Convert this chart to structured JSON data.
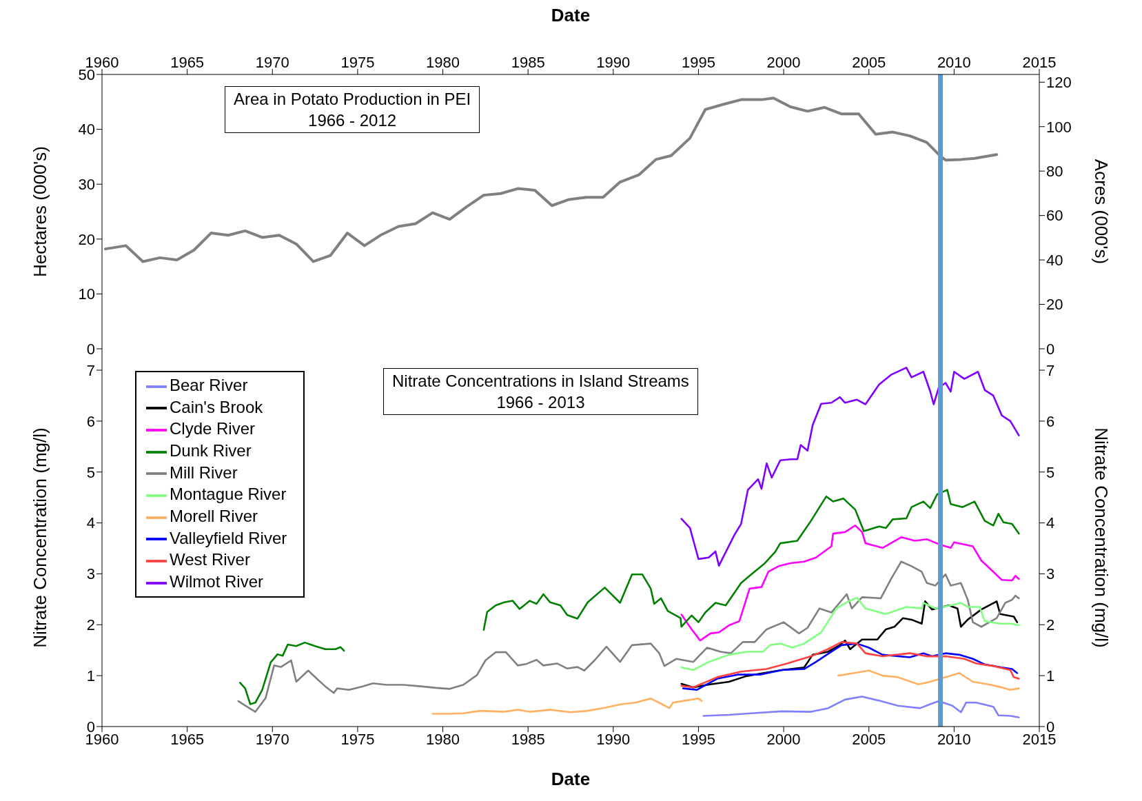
{
  "chart_data": [
    {
      "type": "line",
      "title": "Area in Potato Production in PEI",
      "subtitle": "1966 - 2012",
      "xlabel": "Date",
      "ylabel": "Hectares  (000's)",
      "y2label": "Acres (000's)",
      "xlim": [
        1960,
        2015
      ],
      "xticks": [
        1960,
        1965,
        1970,
        1975,
        1980,
        1985,
        1990,
        1995,
        2000,
        2005,
        2010,
        2015
      ],
      "ylim": [
        0,
        50
      ],
      "yticks": [
        0,
        10,
        20,
        30,
        40,
        50
      ],
      "y2lim": [
        0,
        123.5
      ],
      "y2ticks": [
        0,
        20,
        40,
        60,
        80,
        100,
        120
      ],
      "grid": false,
      "legend": false,
      "marker": "none",
      "line_style": "solid",
      "ref_lines": [
        {
          "axis": "x",
          "value": 2009.2,
          "color": "#5b9bd5"
        }
      ],
      "series": [
        {
          "color": "#808080",
          "x": [
            1960.2,
            1961.4,
            1962.4,
            1963.4,
            1964.4,
            1965.4,
            1966.4,
            1967.4,
            1968.4,
            1969.4,
            1970.4,
            1971.4,
            1972.4,
            1973.4,
            1974.4,
            1975.4,
            1976.4,
            1977.4,
            1978.4,
            1979.4,
            1980.4,
            1981.4,
            1982.4,
            1983.4,
            1984.4,
            1985.4,
            1986.4,
            1987.4,
            1988.4,
            1989.4,
            1990.4,
            1991.5,
            1992.5,
            1993.4,
            1994.5,
            1995.4,
            1996.4,
            1997.5,
            1998.7,
            1999.4,
            2000.4,
            2001.4,
            2002.4,
            2003.4,
            2004.4,
            2005.4,
            2006.4,
            2007.4,
            2008.4,
            2009.2,
            2009.5,
            2010.4,
            2011.2,
            2012.5
          ],
          "values": [
            18.2,
            18.8,
            15.9,
            16.6,
            16.2,
            18.0,
            21.1,
            20.7,
            21.5,
            20.3,
            20.7,
            19.1,
            15.9,
            17.0,
            21.1,
            18.8,
            20.8,
            22.3,
            22.8,
            24.8,
            23.6,
            25.9,
            28.0,
            28.3,
            29.2,
            28.9,
            26.1,
            27.2,
            27.6,
            27.6,
            30.4,
            31.7,
            34.5,
            35.2,
            38.4,
            43.6,
            44.5,
            45.4,
            45.4,
            45.7,
            44.1,
            43.3,
            44.0,
            42.8,
            42.8,
            39.1,
            39.5,
            38.8,
            37.6,
            35.1,
            34.4,
            34.5,
            34.7,
            35.4
          ]
        }
      ]
    },
    {
      "type": "line",
      "title": "Nitrate Concentrations in Island Streams",
      "subtitle": "1966 - 2013",
      "xlabel": "Date",
      "ylabel": "Nitrate Concentration (mg/l)",
      "y2label": "Nitrate Concentration (mg/l)",
      "xlim": [
        1960,
        2015
      ],
      "xticks": [
        1960,
        1965,
        1970,
        1975,
        1980,
        1985,
        1990,
        1995,
        2000,
        2005,
        2010,
        2015
      ],
      "ylim": [
        0,
        7.42
      ],
      "yticks": [
        0,
        1,
        2,
        3,
        4,
        5,
        6,
        7
      ],
      "y2lim": [
        0,
        7.42
      ],
      "y2ticks": [
        0,
        1,
        2,
        3,
        4,
        5,
        6,
        7
      ],
      "grid": false,
      "legend": "top left",
      "marker": "none",
      "line_style": "solid",
      "ref_lines": [
        {
          "axis": "x",
          "value": 2009.2,
          "color": "#5b9bd5"
        }
      ],
      "series": [
        {
          "name": "Bear River",
          "color": "#8080ff",
          "x": [
            1995.3,
            1996.8,
            1998.1,
            1999.9,
            2001.6,
            2002.6,
            2003.6,
            2004.6,
            2005.7,
            2006.7,
            2008.0,
            2008.6,
            2009.1,
            2009.9,
            2010.4,
            2010.7,
            2011.3,
            2012.3,
            2012.6,
            2013.3,
            2013.8
          ],
          "values": [
            0.21,
            0.23,
            0.26,
            0.3,
            0.29,
            0.36,
            0.53,
            0.59,
            0.5,
            0.41,
            0.36,
            0.44,
            0.5,
            0.41,
            0.28,
            0.47,
            0.47,
            0.39,
            0.22,
            0.21,
            0.18
          ]
        },
        {
          "name": "Cain's Brook",
          "color": "#000000",
          "x": [
            1994.0,
            1994.7,
            1995.7,
            1996.8,
            1997.8,
            1998.8,
            1999.9,
            2001.2,
            2001.7,
            2002.6,
            2003.3,
            2003.6,
            2003.9,
            2004.6,
            2005.5,
            2006.0,
            2006.5,
            2007.0,
            2007.5,
            2008.1,
            2008.3,
            2008.7,
            2009.7,
            2010.2,
            2010.4,
            2010.8,
            2011.6,
            2012.5,
            2012.7,
            2013.5,
            2013.7
          ],
          "values": [
            0.84,
            0.77,
            0.83,
            0.88,
            0.99,
            1.05,
            1.11,
            1.16,
            1.41,
            1.47,
            1.6,
            1.69,
            1.52,
            1.71,
            1.71,
            1.91,
            1.96,
            2.13,
            2.1,
            2.02,
            2.46,
            2.3,
            2.38,
            2.32,
            1.96,
            2.1,
            2.3,
            2.46,
            2.21,
            2.16,
            2.05
          ]
        },
        {
          "name": "Clyde River",
          "color": "#ff00ff",
          "x": [
            1994.0,
            1994.6,
            1995.1,
            1995.7,
            1996.2,
            1996.8,
            1997.4,
            1998.0,
            1998.7,
            1999.1,
            1999.7,
            2000.4,
            2001.2,
            2001.9,
            2002.8,
            2002.9,
            2003.6,
            2004.2,
            2004.6,
            2004.8,
            2005.8,
            2006.9,
            2007.7,
            2008.4,
            2009.2,
            2009.8,
            2010.0,
            2011.1,
            2011.6,
            2012.3,
            2012.8,
            2013.4,
            2013.6,
            2013.8
          ],
          "values": [
            2.2,
            1.91,
            1.69,
            1.83,
            1.85,
            1.99,
            2.07,
            2.71,
            2.74,
            3.04,
            3.15,
            3.21,
            3.24,
            3.32,
            3.54,
            3.79,
            3.82,
            3.95,
            3.82,
            3.6,
            3.51,
            3.72,
            3.65,
            3.68,
            3.57,
            3.51,
            3.62,
            3.54,
            3.26,
            3.04,
            2.88,
            2.87,
            2.96,
            2.9
          ]
        },
        {
          "name": "Dunk River",
          "color": "#008000",
          "x": [
            1968.1,
            1968.4,
            1968.7,
            1969.0,
            1969.4,
            1969.9,
            1970.3,
            1970.6,
            1970.9,
            1971.4,
            1971.9,
            1972.5,
            1973.1,
            1973.7,
            1974.0,
            1974.2,
            1978,
            1982.4,
            1982.6,
            1983.1,
            1983.6,
            1984.1,
            1984.5,
            1985.1,
            1985.5,
            1985.9,
            1986.3,
            1986.9,
            1987.3,
            1987.9,
            1988.5,
            1989.5,
            1990.4,
            1991.1,
            1991.7,
            1992.2,
            1992.4,
            1992.8,
            1993.2,
            1993.95,
            1994.0,
            1994.6,
            1995.0,
            1995.4,
            1996.0,
            1996.6,
            1997.5,
            1998.1,
            1998.9,
            1999.5,
            1999.8,
            2000.8,
            2001.6,
            2002.5,
            2002.9,
            2003.5,
            2004.2,
            2004.7,
            2005.6,
            2006.0,
            2006.4,
            2007.2,
            2007.5,
            2008.2,
            2008.6,
            2009.0,
            2009.6,
            2009.8,
            2010.5,
            2011.2,
            2011.8,
            2012.3,
            2012.6,
            2012.9,
            2013.4,
            2013.8
          ],
          "values": [
            0.86,
            0.75,
            0.44,
            0.47,
            0.72,
            1.26,
            1.42,
            1.39,
            1.61,
            1.58,
            1.65,
            1.58,
            1.52,
            1.52,
            1.56,
            1.49,
            null,
            1.9,
            2.25,
            2.38,
            2.44,
            2.47,
            2.31,
            2.47,
            2.41,
            2.6,
            2.44,
            2.38,
            2.19,
            2.12,
            2.44,
            2.73,
            2.43,
            2.99,
            2.99,
            2.71,
            2.41,
            2.52,
            2.27,
            2.13,
            1.96,
            2.18,
            2.05,
            2.24,
            2.43,
            2.38,
            2.82,
            2.99,
            3.21,
            3.43,
            3.6,
            3.65,
            4.04,
            4.52,
            4.42,
            4.48,
            4.26,
            3.84,
            3.93,
            3.9,
            4.07,
            4.09,
            4.31,
            4.42,
            4.29,
            4.56,
            4.65,
            4.37,
            4.31,
            4.42,
            4.04,
            3.95,
            4.18,
            4.01,
            3.98,
            3.79
          ]
        },
        {
          "name": "Mill River",
          "color": "#808080",
          "x": [
            1968.0,
            1968.6,
            1969.0,
            1969.6,
            1970.1,
            1970.5,
            1971.1,
            1971.4,
            1972.1,
            1972.7,
            1973.1,
            1973.6,
            1973.8,
            1974.5,
            1975.3,
            1975.9,
            1976.7,
            1977.7,
            1978.7,
            1979.6,
            1980.4,
            1981.2,
            1982.0,
            1982.5,
            1983.1,
            1983.7,
            1984.4,
            1984.9,
            1985.5,
            1985.9,
            1986.7,
            1987.3,
            1987.9,
            1988.3,
            1988.9,
            1989.6,
            1990.4,
            1991.1,
            1992.2,
            1992.7,
            1993.0,
            1993.7,
            1994.2,
            1994.7,
            1995.5,
            1996.3,
            1996.9,
            1997.6,
            1998.3,
            1999.0,
            2000.0,
            2000.9,
            2001.4,
            2002.1,
            2002.8,
            2003.7,
            2004.0,
            2004.6,
            2005.7,
            2006.3,
            2006.9,
            2007.5,
            2008.1,
            2008.4,
            2008.9,
            2009.5,
            2009.8,
            2010.4,
            2010.8,
            2011.1,
            2011.6,
            2012.5,
            2013.0,
            2013.4,
            2013.6,
            2013.8
          ],
          "values": [
            0.5,
            0.37,
            0.29,
            0.56,
            1.2,
            1.17,
            1.3,
            0.88,
            1.1,
            0.91,
            0.79,
            0.66,
            0.75,
            0.72,
            0.79,
            0.85,
            0.82,
            0.82,
            0.79,
            0.76,
            0.74,
            0.82,
            1.01,
            1.3,
            1.46,
            1.46,
            1.2,
            1.23,
            1.31,
            1.2,
            1.24,
            1.14,
            1.17,
            1.1,
            1.3,
            1.57,
            1.27,
            1.6,
            1.63,
            1.44,
            1.19,
            1.33,
            1.3,
            1.27,
            1.55,
            1.47,
            1.44,
            1.66,
            1.66,
            1.91,
            2.05,
            1.83,
            1.94,
            2.32,
            2.24,
            2.6,
            2.32,
            2.54,
            2.52,
            2.9,
            3.24,
            3.15,
            3.04,
            2.82,
            2.77,
            2.99,
            2.77,
            2.82,
            2.49,
            2.05,
            1.96,
            2.13,
            2.43,
            2.49,
            2.57,
            2.52
          ]
        },
        {
          "name": "Montague River",
          "color": "#80ff80",
          "x": [
            1994.0,
            1994.7,
            1995.6,
            1996.8,
            1997.8,
            1998.8,
            1999.2,
            1999.8,
            2000.5,
            2001.2,
            2002.2,
            2003.1,
            2003.8,
            2004.3,
            2004.8,
            2006.0,
            2007.2,
            2008.1,
            2008.2,
            2008.9,
            2009.8,
            2010.4,
            2010.8,
            2011.5,
            2011.8,
            2012.7,
            2013.3,
            2013.8
          ],
          "values": [
            1.16,
            1.11,
            1.27,
            1.41,
            1.47,
            1.47,
            1.6,
            1.63,
            1.55,
            1.63,
            1.85,
            2.32,
            2.46,
            2.53,
            2.32,
            2.21,
            2.35,
            2.32,
            2.43,
            2.32,
            2.38,
            2.43,
            2.35,
            2.35,
            2.07,
            2.02,
            2.02,
            1.99
          ]
        },
        {
          "name": "Morell River",
          "color": "#ffb060",
          "x": [
            1979.4,
            1980.4,
            1981.2,
            1982.2,
            1983.6,
            1984.4,
            1985.1,
            1986.3,
            1987.5,
            1988.5,
            1989.5,
            1990.5,
            1991.3,
            1992.2,
            1992.8,
            1993.3,
            1993.5,
            1994.6,
            1995.0,
            1995.2,
            2000,
            2003.2,
            2004.1,
            2005.0,
            2005.8,
            2006.7,
            2007.9,
            2008.6,
            2009.2,
            2010.3,
            2011.1,
            2012.0,
            2012.8,
            2013.3,
            2013.8
          ],
          "values": [
            0.25,
            0.25,
            0.26,
            0.31,
            0.29,
            0.33,
            0.29,
            0.33,
            0.28,
            0.31,
            0.37,
            0.44,
            0.47,
            0.55,
            0.45,
            0.36,
            0.47,
            0.53,
            0.55,
            0.5,
            null,
            1.0,
            1.05,
            1.1,
            1.0,
            0.97,
            0.83,
            0.88,
            0.94,
            1.05,
            0.88,
            0.83,
            0.77,
            0.72,
            0.75
          ]
        },
        {
          "name": "Valleyfield River",
          "color": "#0000ff",
          "x": [
            1994.1,
            1994.9,
            1996.1,
            1997.3,
            1998.6,
            1999.9,
            2001.2,
            2001.9,
            2002.8,
            2003.4,
            2004.3,
            2005.0,
            2005.8,
            2007.4,
            2008.2,
            2008.7,
            2009.5,
            2010.3,
            2011.1,
            2011.8,
            2012.8,
            2013.4,
            2013.7
          ],
          "values": [
            0.75,
            0.72,
            0.94,
            1.02,
            1.02,
            1.11,
            1.13,
            1.27,
            1.47,
            1.6,
            1.63,
            1.55,
            1.41,
            1.36,
            1.44,
            1.38,
            1.44,
            1.41,
            1.33,
            1.22,
            1.16,
            1.13,
            1.05
          ]
        },
        {
          "name": "West River",
          "color": "#ff4040",
          "x": [
            1994.0,
            1994.7,
            1996.1,
            1997.5,
            1999.0,
            2000.2,
            2001.6,
            2002.6,
            2003.4,
            2004.3,
            2004.8,
            2005.8,
            2007.4,
            2008.4,
            2009.5,
            2010.6,
            2011.3,
            2012.3,
            2013.3,
            2013.5,
            2013.8
          ],
          "values": [
            0.8,
            0.77,
            0.97,
            1.08,
            1.13,
            1.24,
            1.38,
            1.52,
            1.66,
            1.63,
            1.44,
            1.38,
            1.44,
            1.38,
            1.38,
            1.33,
            1.24,
            1.19,
            1.11,
            0.97,
            0.94
          ]
        },
        {
          "name": "Wilmot River",
          "color": "#8000ff",
          "x": [
            1994.0,
            1994.5,
            1995.0,
            1995.6,
            1996.0,
            1996.2,
            1997.1,
            1997.5,
            1997.9,
            1998.5,
            1998.7,
            1999.0,
            1999.3,
            1999.8,
            2000.4,
            2000.8,
            2001.0,
            2001.4,
            2001.7,
            2002.2,
            2002.8,
            2003.3,
            2003.6,
            2004.3,
            2004.8,
            2005.6,
            2006.3,
            2007.2,
            2007.5,
            2008.2,
            2008.6,
            2008.8,
            2009.1,
            2009.5,
            2009.8,
            2010.0,
            2010.6,
            2011.4,
            2011.8,
            2012.3,
            2012.8,
            2013.3,
            2013.8
          ],
          "values": [
            4.08,
            3.9,
            3.29,
            3.32,
            3.44,
            3.16,
            3.76,
            3.98,
            4.65,
            4.86,
            4.67,
            5.17,
            4.89,
            5.23,
            5.25,
            5.25,
            5.53,
            5.42,
            5.92,
            6.34,
            6.36,
            6.47,
            6.36,
            6.42,
            6.33,
            6.72,
            6.91,
            7.05,
            6.86,
            6.97,
            6.58,
            6.33,
            6.66,
            6.75,
            6.58,
            6.97,
            6.83,
            6.97,
            6.61,
            6.5,
            6.11,
            6.0,
            5.72
          ]
        }
      ]
    }
  ]
}
